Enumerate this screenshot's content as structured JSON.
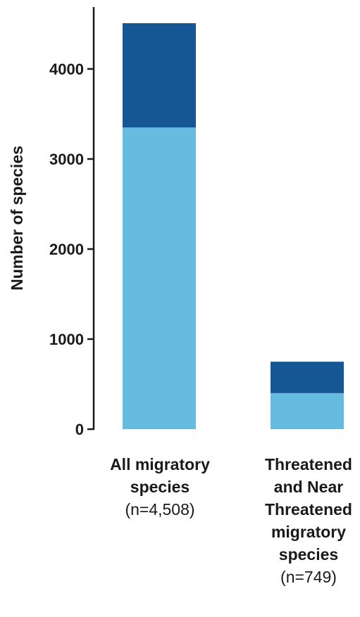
{
  "chart_data": {
    "type": "bar",
    "stacked": true,
    "ylabel": "Number of species",
    "ylim": [
      0,
      4700
    ],
    "yticks": [
      0,
      1000,
      2000,
      3000,
      4000
    ],
    "ytick_labels": [
      "0",
      "1000",
      "2000",
      "3000",
      "4000"
    ],
    "categories": [
      {
        "lines": [
          "All migratory",
          "species"
        ],
        "n_label": "(n=4,508)"
      },
      {
        "lines": [
          "Threatened",
          "and Near",
          "Threatened",
          "migratory",
          "species"
        ],
        "n_label": "(n=749)"
      }
    ],
    "series": [
      {
        "values": [
          3350,
          400
        ],
        "color": "#66bce0"
      },
      {
        "values": [
          1158,
          349
        ],
        "color": "#155694"
      }
    ],
    "axis_color": "#1a1a1a",
    "grid": false,
    "legend": "none"
  }
}
